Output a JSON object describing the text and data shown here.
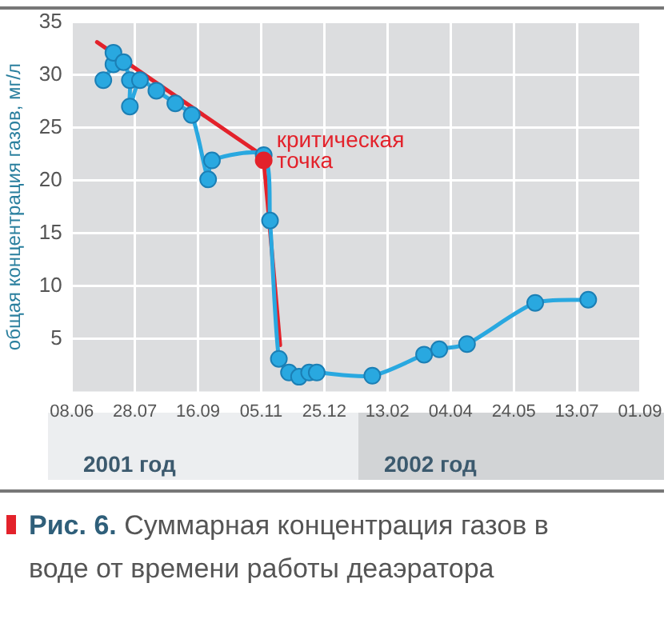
{
  "chart_data": {
    "type": "line",
    "title": "Рис. 6. Суммарная концентрация газов в воде от времени работы деаэратора",
    "ylabel": "общая концентрация газов, мг/л",
    "xlim": [
      "2001-06-08",
      "2002-09-01"
    ],
    "xticks": [
      {
        "value": "2001-06-08",
        "label": "08.06"
      },
      {
        "value": "2001-07-28",
        "label": "28.07"
      },
      {
        "value": "2001-09-16",
        "label": "16.09"
      },
      {
        "value": "2001-11-05",
        "label": "05.11"
      },
      {
        "value": "2001-12-25",
        "label": "25.12"
      },
      {
        "value": "2002-02-13",
        "label": "13.02"
      },
      {
        "value": "2002-04-04",
        "label": "04.04"
      },
      {
        "value": "2002-05-24",
        "label": "24.05"
      },
      {
        "value": "2002-07-13",
        "label": "13.07"
      },
      {
        "value": "2002-09-01",
        "label": "01.09"
      }
    ],
    "ylim": [
      0,
      35
    ],
    "yticks": [
      5,
      10,
      15,
      20,
      25,
      30,
      35
    ],
    "grid": true,
    "series": [
      {
        "color": "#29a8e0",
        "marker": "circle",
        "x": [
          "2001-07-03",
          "2001-07-11",
          "2001-07-11",
          "2001-07-19",
          "2001-07-24",
          "2001-07-24",
          "2001-08-01",
          "2001-08-14",
          "2001-08-29",
          "2001-09-11",
          "2001-09-24",
          "2001-09-27",
          "2001-11-07",
          "2001-11-12",
          "2001-11-19",
          "2001-11-27",
          "2001-12-05",
          "2001-12-13",
          "2001-12-19",
          "2002-02-01",
          "2002-03-14",
          "2002-03-26",
          "2002-04-17",
          "2002-06-10",
          "2002-07-22"
        ],
        "values": [
          29.5,
          31.0,
          32.1,
          31.2,
          29.5,
          27.0,
          29.5,
          28.5,
          27.3,
          26.2,
          20.1,
          21.9,
          22.4,
          16.2,
          3.1,
          1.8,
          1.4,
          1.8,
          1.8,
          1.5,
          3.5,
          4.0,
          4.5,
          8.4,
          8.7
        ]
      },
      {
        "color": "#e3222b",
        "marker": "none",
        "x": [
          "2001-06-28",
          "2001-11-03",
          "2001-11-07",
          "2001-11-10",
          "2001-11-20"
        ],
        "values": [
          33.1,
          22.6,
          21.9,
          18.0,
          4.4
        ]
      },
      {
        "type": "scatter",
        "color": "#e3222b",
        "marker": "circle",
        "x": [
          "2001-11-07"
        ],
        "values": [
          21.9
        ]
      }
    ],
    "annotations": [
      {
        "text": "критическая точка",
        "x": "2001-11-07",
        "y": 21.9
      },
      "2001 год",
      "2002 год"
    ]
  }
}
